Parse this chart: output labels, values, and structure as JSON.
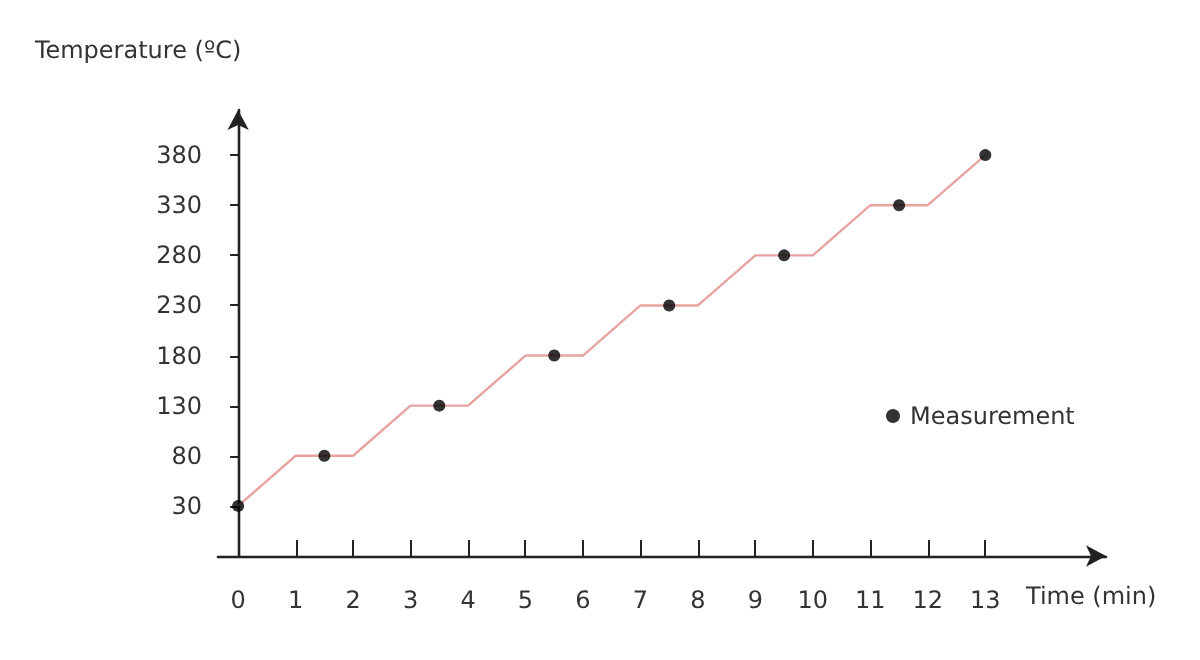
{
  "chart_data": {
    "type": "line",
    "xlabel": "Time (min)",
    "ylabel": "Temperature (ºC)",
    "xlim": [
      -0.35,
      15.1
    ],
    "xticks": [
      0,
      1,
      2,
      3,
      4,
      5,
      6,
      7,
      8,
      9,
      10,
      11,
      12,
      13
    ],
    "ylim": [
      -20,
      425
    ],
    "yticks": [
      30,
      80,
      130,
      180,
      230,
      280,
      330,
      380
    ],
    "grid": false,
    "legend": "right",
    "series": [
      {
        "color": "#e8a3a3",
        "marker": "none",
        "x": [
          0,
          1,
          2,
          3,
          4,
          5,
          6,
          7,
          8,
          9,
          10,
          11,
          12,
          13
        ],
        "values": [
          30,
          80,
          80,
          130,
          130,
          180,
          180,
          230,
          230,
          280,
          280,
          330,
          330,
          380
        ]
      },
      {
        "type": "scatter",
        "name": "Measurement",
        "color": "#000000",
        "marker": "circle",
        "x": [
          0,
          1.5,
          3.5,
          5.5,
          7.5,
          9.5,
          11.5,
          13
        ],
        "values": [
          30,
          80,
          130,
          180,
          230,
          280,
          330,
          380
        ]
      }
    ]
  }
}
